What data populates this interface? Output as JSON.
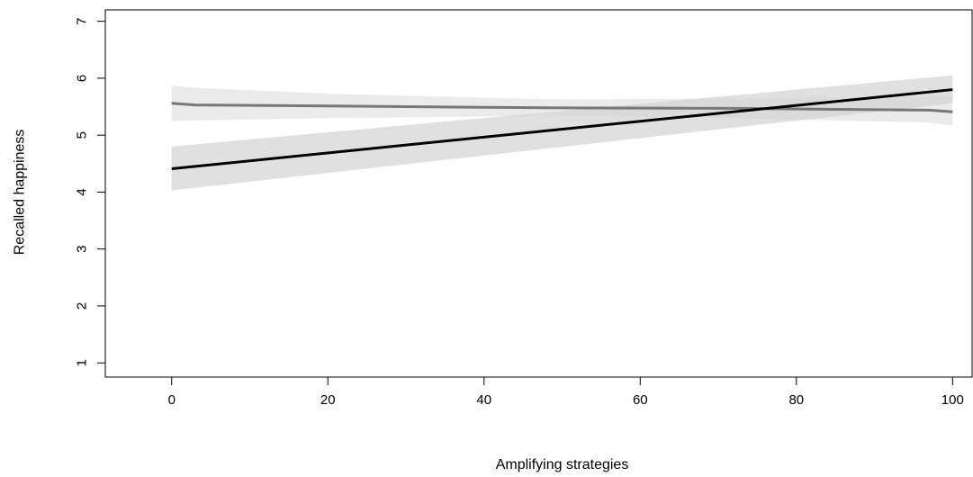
{
  "chart_data": {
    "type": "line",
    "title": "",
    "xlabel": "Amplifying strategies",
    "ylabel": "Recalled happiness",
    "xlim": [
      -8.5,
      102.5
    ],
    "ylim": [
      0.75,
      7.2
    ],
    "xticks": [
      0,
      20,
      40,
      60,
      80,
      100
    ],
    "yticks": [
      1,
      2,
      3,
      4,
      5,
      6,
      7
    ],
    "grid": false,
    "legend": "none",
    "series": [
      {
        "x": [
          0,
          3,
          22,
          48,
          72,
          97,
          100
        ],
        "y": [
          5.56,
          5.53,
          5.51,
          5.48,
          5.47,
          5.44,
          5.41
        ],
        "ci_lower": [
          5.25,
          5.26,
          5.3,
          5.34,
          5.3,
          5.22,
          5.17
        ],
        "ci_upper": [
          5.87,
          5.83,
          5.72,
          5.63,
          5.64,
          5.68,
          5.7
        ],
        "color": "#777777",
        "band_color": "#e8e8e8"
      },
      {
        "x": [
          0,
          100
        ],
        "y": [
          4.41,
          5.8
        ],
        "ci_lower": [
          4.03,
          5.56
        ],
        "ci_upper": [
          4.8,
          6.05
        ],
        "color": "#000000",
        "band_color": "#d3d3d3"
      }
    ]
  }
}
